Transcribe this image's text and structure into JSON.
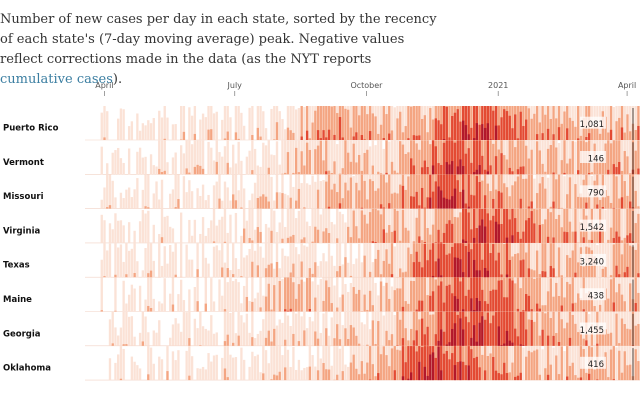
{
  "intro": {
    "text_before_link": "Number of new cases per day in each state, sorted by the recency of each state's (7-day moving average) peak. Negative values reflect corrections made in the data (as the NYT reports ",
    "link_text": "cumulative cases",
    "text_after_link": ")."
  },
  "colors": {
    "link": "#3b7ea1",
    "light": "#fbe2d6",
    "mid": "#f4a582",
    "strong": "#e34a33",
    "dark": "#b2182b"
  },
  "chart_data": {
    "type": "heatmap",
    "subtype": "horizon-bars",
    "x_axis": {
      "ticks": [
        {
          "label": "April",
          "date": "2020-04-01"
        },
        {
          "label": "July",
          "date": "2020-07-01"
        },
        {
          "label": "October",
          "date": "2020-10-01"
        },
        {
          "label": "2021",
          "date": "2021-01-01"
        },
        {
          "label": "April",
          "date": "2021-04-01"
        }
      ],
      "range": [
        "2020-03-01",
        "2021-04-10"
      ]
    },
    "series": [
      {
        "name": "Puerto Rico",
        "latest_value": "1,081"
      },
      {
        "name": "Vermont",
        "latest_value": "146"
      },
      {
        "name": "Missouri",
        "latest_value": "790"
      },
      {
        "name": "Virginia",
        "latest_value": "1,542"
      },
      {
        "name": "Texas",
        "latest_value": "3,240"
      },
      {
        "name": "Maine",
        "latest_value": "438"
      },
      {
        "name": "Georgia",
        "latest_value": "1,455"
      },
      {
        "name": "Oklahoma",
        "latest_value": "416"
      }
    ]
  }
}
